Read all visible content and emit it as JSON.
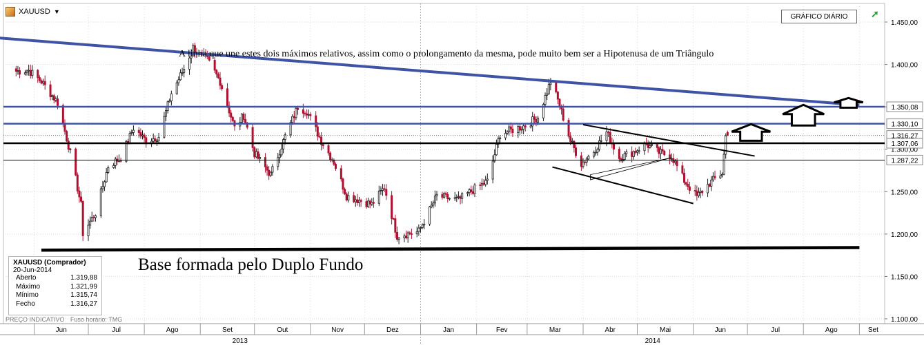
{
  "symbol": {
    "name": "XAUUSD",
    "caret": "▼",
    "icon": "gold-bar-icon"
  },
  "period_button": "GRÁFICO DIÁRIO",
  "expand_icon": "expand-arrow-icon",
  "annotation_top": "A linha que une estes dois máximos relativos, assim como o prolongamento da mesma, pode muito bem ser a Hipotenusa de um Triângulo",
  "annotation_base": "Base formada pelo Duplo Fundo",
  "info_box": {
    "title": "XAUUSD (Comprador)",
    "date": "20-Jun-2014",
    "rows": [
      {
        "label": "Aberto",
        "value": "1.319,88"
      },
      {
        "label": "Máximo",
        "value": "1.321,99"
      },
      {
        "label": "Mínimo",
        "value": "1.315,74"
      },
      {
        "label": "Fecho",
        "value": "1.316,27"
      }
    ]
  },
  "footer": {
    "price_note": "PREÇO INDICATIVO",
    "timezone_note": "Fuso horário: TMG"
  },
  "colors": {
    "bull": "#1a1a1a",
    "bear": "#b01030",
    "trend_blue": "#3f53a6",
    "grid": "#d9d9d9",
    "black_line": "#000000"
  },
  "chart_data": {
    "type": "candlestick",
    "x_tick_labels": [
      "Jun",
      "Jul",
      "Ago",
      "Set",
      "Out",
      "Nov",
      "Dez",
      "Jan",
      "Fev",
      "Mar",
      "Abr",
      "Mai",
      "Jun",
      "Jul",
      "Ago",
      "Set"
    ],
    "x_year_labels": [
      "2013",
      "2014"
    ],
    "y_ticks": [
      "1.100,00",
      "1.150,00",
      "1.200,00",
      "1.250,00",
      "1.300,00",
      "1.350,00",
      "1.400,00",
      "1.450,00"
    ],
    "ylim": [
      1100,
      1465
    ],
    "price_labels": [
      {
        "value": 1350.08,
        "label": "1.350,08",
        "style": "blue"
      },
      {
        "value": 1330.1,
        "label": "1.330,10",
        "style": "blue"
      },
      {
        "value": 1316.27,
        "label": "1.316,27",
        "style": "dotted"
      },
      {
        "value": 1307.06,
        "label": "1.307,06",
        "style": "black"
      },
      {
        "value": 1287.22,
        "label": "1.287,22",
        "style": "thin"
      }
    ],
    "trend_line_top": [
      {
        "x": "2013-04-26",
        "y": 1434
      },
      {
        "x": "2014-09-01",
        "y": 1352
      }
    ],
    "base_line": [
      {
        "x": "2013-06-05",
        "y": 1181
      },
      {
        "x": "2014-09-01",
        "y": 1184
      }
    ],
    "upper_channel": [
      {
        "x": "2014-04-01",
        "y": 1329
      },
      {
        "x": "2014-07-05",
        "y": 1292
      }
    ],
    "lower_channel": [
      {
        "x": "2014-03-15",
        "y": 1279
      },
      {
        "x": "2014-06-01",
        "y": 1236
      }
    ],
    "triangle": [
      {
        "x": "2014-04-05",
        "y": 1264
      },
      {
        "x": "2014-04-05",
        "y": 1270
      },
      {
        "x": "2014-05-20",
        "y": 1290
      }
    ],
    "waypoints": [
      [
        "2013-05-22",
        1392
      ],
      [
        "2013-05-29",
        1393
      ],
      [
        "2013-06-05",
        1380
      ],
      [
        "2013-06-14",
        1355
      ],
      [
        "2013-06-21",
        1296
      ],
      [
        "2013-06-27",
        1234
      ],
      [
        "2013-06-28",
        1201
      ],
      [
        "2013-07-05",
        1225
      ],
      [
        "2013-07-12",
        1280
      ],
      [
        "2013-07-19",
        1290
      ],
      [
        "2013-07-26",
        1325
      ],
      [
        "2013-08-02",
        1310
      ],
      [
        "2013-08-09",
        1315
      ],
      [
        "2013-08-16",
        1366
      ],
      [
        "2013-08-23",
        1395
      ],
      [
        "2013-08-28",
        1420
      ],
      [
        "2013-09-05",
        1405
      ],
      [
        "2013-09-12",
        1380
      ],
      [
        "2013-09-20",
        1325
      ],
      [
        "2013-09-25",
        1340
      ],
      [
        "2013-10-01",
        1295
      ],
      [
        "2013-10-10",
        1270
      ],
      [
        "2013-10-18",
        1315
      ],
      [
        "2013-10-25",
        1350
      ],
      [
        "2013-10-30",
        1345
      ],
      [
        "2013-11-07",
        1310
      ],
      [
        "2013-11-14",
        1285
      ],
      [
        "2013-11-21",
        1245
      ],
      [
        "2013-11-28",
        1240
      ],
      [
        "2013-12-05",
        1235
      ],
      [
        "2013-12-12",
        1255
      ],
      [
        "2013-12-19",
        1198
      ],
      [
        "2013-12-31",
        1203
      ],
      [
        "2014-01-10",
        1245
      ],
      [
        "2014-01-22",
        1240
      ],
      [
        "2014-01-30",
        1252
      ],
      [
        "2014-02-07",
        1262
      ],
      [
        "2014-02-14",
        1318
      ],
      [
        "2014-02-21",
        1323
      ],
      [
        "2014-02-28",
        1328
      ],
      [
        "2014-03-07",
        1338
      ],
      [
        "2014-03-14",
        1380
      ],
      [
        "2014-03-18",
        1358
      ],
      [
        "2014-03-25",
        1310
      ],
      [
        "2014-03-31",
        1283
      ],
      [
        "2014-04-07",
        1298
      ],
      [
        "2014-04-14",
        1320
      ],
      [
        "2014-04-21",
        1290
      ],
      [
        "2014-04-28",
        1296
      ],
      [
        "2014-05-06",
        1306
      ],
      [
        "2014-05-13",
        1296
      ],
      [
        "2014-05-20",
        1292
      ],
      [
        "2014-05-27",
        1263
      ],
      [
        "2014-06-03",
        1244
      ],
      [
        "2014-06-10",
        1260
      ],
      [
        "2014-06-17",
        1272
      ],
      [
        "2014-06-19",
        1315
      ],
      [
        "2014-06-20",
        1316.27
      ]
    ],
    "last_bar": {
      "date": "2014-06-20",
      "open": 1319.88,
      "high": 1321.99,
      "low": 1315.74,
      "close": 1316.27
    }
  }
}
